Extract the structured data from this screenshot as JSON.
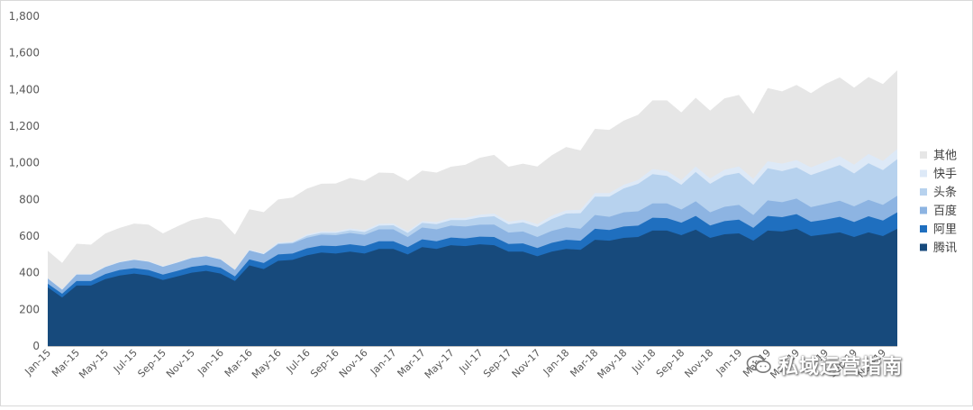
{
  "chart_data": {
    "type": "area",
    "stacked": true,
    "title": "",
    "xlabel": "",
    "ylabel": "",
    "ylim": [
      0,
      1800
    ],
    "yticks": [
      0,
      200,
      400,
      600,
      800,
      1000,
      1200,
      1400,
      1600,
      1800
    ],
    "ytick_labels": [
      "0",
      "200",
      "400",
      "600",
      "800",
      "1,000",
      "1,200",
      "1,400",
      "1,600",
      "1,800"
    ],
    "grid": false,
    "legend_position": "right",
    "x": [
      "Jan-15",
      "Feb-15",
      "Mar-15",
      "Apr-15",
      "May-15",
      "Jun-15",
      "Jul-15",
      "Aug-15",
      "Sep-15",
      "Oct-15",
      "Nov-15",
      "Dec-15",
      "Jan-16",
      "Feb-16",
      "Mar-16",
      "Apr-16",
      "May-16",
      "Jun-16",
      "Jul-16",
      "Aug-16",
      "Sep-16",
      "Oct-16",
      "Nov-16",
      "Dec-16",
      "Jan-17",
      "Feb-17",
      "Mar-17",
      "Apr-17",
      "May-17",
      "Jun-17",
      "Jul-17",
      "Aug-17",
      "Sep-17",
      "Oct-17",
      "Nov-17",
      "Dec-17",
      "Jan-18",
      "Feb-18",
      "Mar-18",
      "Apr-18",
      "May-18",
      "Jun-18",
      "Jul-18",
      "Aug-18",
      "Sep-18",
      "Oct-18",
      "Nov-18",
      "Dec-18",
      "Jan-19",
      "Feb-19",
      "Mar-19",
      "Apr-19",
      "May-19",
      "Jun-19",
      "Jul-19",
      "Aug-19",
      "Sep-19",
      "Oct-19",
      "Nov-19",
      "Dec-19"
    ],
    "x_tick_labels": [
      "Jan-15",
      "Mar-15",
      "May-15",
      "Jul-15",
      "Sep-15",
      "Nov-15",
      "Jan-16",
      "Mar-16",
      "May-16",
      "Jul-16",
      "Sep-16",
      "Nov-16",
      "Jan-17",
      "Mar-17",
      "May-17",
      "Jul-17",
      "Sep-17",
      "Nov-17",
      "Jan-18",
      "Mar-18",
      "May-18",
      "Jul-18",
      "Sep-18",
      "Nov-18",
      "Jan-19",
      "Mar-19",
      "May-19",
      "Jul-19",
      "Sep-19",
      "Nov-19"
    ],
    "series": [
      {
        "name": "腾讯",
        "color": "#174A7C",
        "values": [
          320,
          265,
          330,
          330,
          365,
          385,
          395,
          385,
          360,
          380,
          400,
          410,
          395,
          355,
          440,
          420,
          465,
          470,
          495,
          510,
          505,
          515,
          505,
          530,
          530,
          500,
          540,
          530,
          550,
          545,
          555,
          550,
          515,
          515,
          490,
          515,
          530,
          525,
          580,
          575,
          590,
          595,
          630,
          630,
          605,
          635,
          590,
          610,
          615,
          575,
          630,
          625,
          640,
          600,
          610,
          620,
          595,
          620,
          600,
          640
        ]
      },
      {
        "name": "阿里",
        "color": "#1F6FBF",
        "values": [
          20,
          20,
          25,
          25,
          28,
          30,
          30,
          30,
          30,
          30,
          32,
          32,
          32,
          25,
          33,
          33,
          35,
          35,
          38,
          38,
          40,
          40,
          40,
          42,
          42,
          40,
          42,
          42,
          42,
          42,
          42,
          45,
          42,
          45,
          45,
          48,
          50,
          50,
          60,
          58,
          62,
          62,
          70,
          68,
          68,
          75,
          68,
          72,
          75,
          70,
          80,
          78,
          80,
          78,
          80,
          85,
          82,
          88,
          85,
          90
        ]
      },
      {
        "name": "百度",
        "color": "#8DB4E2",
        "values": [
          28,
          22,
          35,
          35,
          38,
          42,
          45,
          45,
          42,
          45,
          48,
          48,
          45,
          35,
          48,
          48,
          55,
          55,
          58,
          60,
          60,
          62,
          62,
          65,
          65,
          55,
          65,
          65,
          65,
          65,
          65,
          68,
          62,
          65,
          60,
          65,
          68,
          65,
          75,
          72,
          78,
          78,
          78,
          80,
          72,
          80,
          72,
          78,
          80,
          70,
          85,
          82,
          85,
          80,
          85,
          88,
          85,
          90,
          85,
          90
        ]
      },
      {
        "name": "头条",
        "color": "#B7D2EE",
        "values": [
          0,
          0,
          0,
          0,
          0,
          0,
          0,
          0,
          0,
          0,
          0,
          0,
          0,
          0,
          0,
          0,
          5,
          5,
          10,
          10,
          12,
          15,
          15,
          20,
          22,
          22,
          25,
          28,
          30,
          35,
          40,
          45,
          45,
          50,
          55,
          65,
          75,
          85,
          100,
          110,
          130,
          150,
          160,
          150,
          135,
          160,
          155,
          170,
          175,
          165,
          175,
          170,
          170,
          175,
          185,
          195,
          180,
          200,
          190,
          200
        ]
      },
      {
        "name": "快手",
        "color": "#DDE9F7",
        "values": [
          2,
          2,
          3,
          3,
          3,
          3,
          3,
          3,
          3,
          3,
          3,
          3,
          3,
          3,
          5,
          5,
          5,
          5,
          8,
          8,
          8,
          10,
          10,
          10,
          10,
          10,
          10,
          12,
          12,
          12,
          15,
          15,
          15,
          15,
          15,
          18,
          18,
          18,
          20,
          20,
          20,
          22,
          28,
          28,
          25,
          30,
          30,
          32,
          35,
          32,
          38,
          40,
          40,
          42,
          45,
          48,
          48,
          50,
          50,
          55
        ]
      },
      {
        "name": "其他",
        "color": "#E6E6E6",
        "values": [
          150,
          145,
          165,
          160,
          180,
          185,
          195,
          200,
          180,
          195,
          205,
          210,
          215,
          190,
          220,
          225,
          235,
          240,
          250,
          260,
          262,
          275,
          270,
          280,
          275,
          275,
          275,
          270,
          280,
          290,
          310,
          320,
          300,
          305,
          315,
          330,
          345,
          325,
          350,
          345,
          350,
          355,
          375,
          385,
          370,
          375,
          370,
          390,
          390,
          355,
          400,
          395,
          410,
          405,
          425,
          430,
          420,
          420,
          420,
          430
        ]
      }
    ]
  },
  "watermark": {
    "text": "私域运营指南",
    "icon": "wechat-icon"
  }
}
